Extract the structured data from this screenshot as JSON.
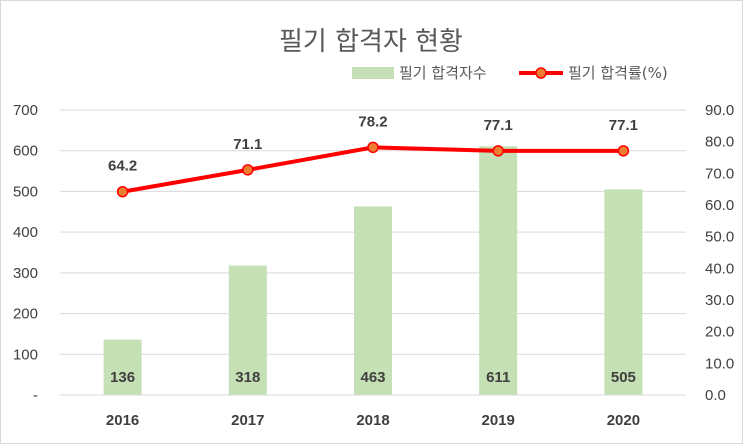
{
  "chart_data": {
    "type": "bar",
    "title": "필기 합격자 현황",
    "categories": [
      "2016",
      "2017",
      "2018",
      "2019",
      "2020"
    ],
    "series": [
      {
        "name": "필기 합격자수",
        "type": "bar",
        "axis": "left",
        "values": [
          136,
          318,
          463,
          611,
          505
        ],
        "data_labels": [
          "136",
          "318",
          "463",
          "611",
          "505"
        ]
      },
      {
        "name": "필기 합격률(%)",
        "type": "line",
        "axis": "right",
        "values": [
          64.2,
          71.1,
          78.2,
          77.1,
          77.1
        ],
        "data_labels": [
          "64.2",
          "71.1",
          "78.2",
          "77.1",
          "77.1"
        ]
      }
    ],
    "y_left": {
      "ylim": [
        0,
        700
      ],
      "ticks": [
        "-",
        "100",
        "200",
        "300",
        "400",
        "500",
        "600",
        "700"
      ]
    },
    "y_right": {
      "ylim": [
        0,
        90
      ],
      "ticks": [
        "0.0",
        "10.0",
        "20.0",
        "30.0",
        "40.0",
        "50.0",
        "60.0",
        "70.0",
        "80.0",
        "90.0"
      ]
    },
    "grid": true,
    "legend_position": "top-right",
    "colors": {
      "bar": "#c5e0b4",
      "line": "#ff0000",
      "marker_fill": "#ed7d31",
      "grid": "#d9d9d9",
      "text": "#404040"
    }
  }
}
